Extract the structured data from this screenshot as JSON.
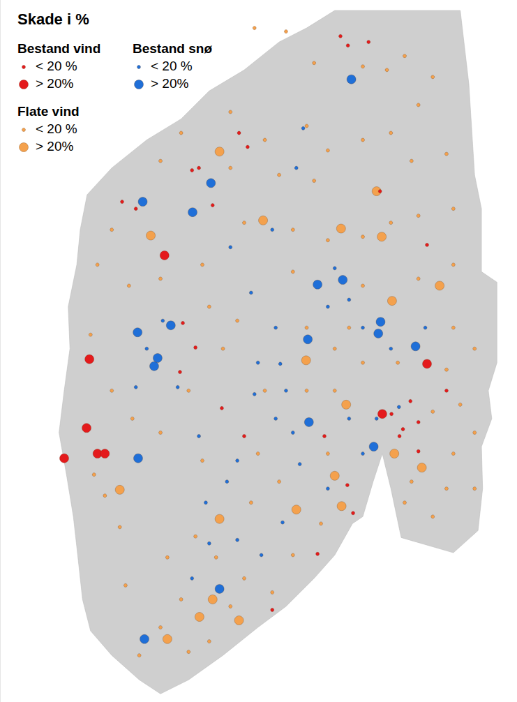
{
  "chart_data": {
    "type": "scatter",
    "title": "Skade i %",
    "xlim": [
      3.66,
      12.68
    ],
    "ylim": [
      57.7,
      63.72
    ],
    "tick_labels": false,
    "grid": false,
    "land": [
      [
        9.5,
        63.63
      ],
      [
        11.69,
        63.63
      ],
      [
        11.84,
        63.0
      ],
      [
        11.94,
        62.22
      ],
      [
        12.06,
        61.93
      ],
      [
        12.06,
        61.39
      ],
      [
        12.33,
        61.3
      ],
      [
        12.33,
        60.61
      ],
      [
        12.18,
        60.37
      ],
      [
        12.24,
        60.13
      ],
      [
        12.06,
        59.89
      ],
      [
        12.08,
        59.53
      ],
      [
        12.0,
        59.17
      ],
      [
        11.57,
        58.98
      ],
      [
        10.66,
        59.11
      ],
      [
        10.48,
        59.53
      ],
      [
        10.33,
        59.83
      ],
      [
        10.17,
        59.59
      ],
      [
        9.99,
        59.29
      ],
      [
        9.81,
        59.23
      ],
      [
        9.5,
        58.96
      ],
      [
        9.14,
        58.76
      ],
      [
        8.65,
        58.52
      ],
      [
        8.16,
        58.34
      ],
      [
        7.55,
        58.1
      ],
      [
        6.95,
        57.89
      ],
      [
        6.46,
        57.77
      ],
      [
        6.09,
        57.89
      ],
      [
        5.61,
        58.1
      ],
      [
        5.24,
        58.31
      ],
      [
        5.1,
        58.58
      ],
      [
        5.02,
        58.94
      ],
      [
        4.94,
        59.29
      ],
      [
        4.82,
        59.65
      ],
      [
        4.69,
        60.01
      ],
      [
        4.78,
        60.37
      ],
      [
        4.88,
        60.73
      ],
      [
        4.85,
        61.09
      ],
      [
        5.0,
        61.45
      ],
      [
        5.06,
        61.75
      ],
      [
        5.18,
        62.05
      ],
      [
        5.61,
        62.28
      ],
      [
        6.22,
        62.52
      ],
      [
        6.82,
        62.7
      ],
      [
        7.31,
        62.94
      ],
      [
        7.92,
        63.12
      ],
      [
        8.53,
        63.36
      ],
      [
        9.01,
        63.48
      ]
    ],
    "series": [
      {
        "name": "Bestand vind",
        "color": "#e41a1c",
        "groups": [
          {
            "label": "< 20 %",
            "points": [
              [
                9.6,
                63.41
              ],
              [
                9.73,
                63.33
              ],
              [
                10.09,
                63.36
              ],
              [
                7.83,
                62.58
              ],
              [
                7.98,
                62.46
              ],
              [
                7.13,
                62.28
              ],
              [
                7.01,
                62.26
              ],
              [
                5.79,
                61.99
              ],
              [
                6.03,
                61.93
              ],
              [
                7.37,
                61.96
              ],
              [
                10.29,
                62.08
              ],
              [
                11.11,
                61.62
              ],
              [
                6.85,
                60.95
              ],
              [
                7.07,
                60.74
              ],
              [
                6.8,
                60.53
              ],
              [
                10.96,
                60.1
              ],
              [
                10.69,
                60.04
              ],
              [
                10.49,
                60.17
              ],
              [
                10.63,
                59.98
              ],
              [
                9.72,
                59.56
              ],
              [
                9.82,
                59.32
              ],
              [
                7.53,
                60.22
              ],
              [
                9.32,
                59.98
              ],
              [
                7.92,
                59.98
              ],
              [
                8.41,
                58.49
              ],
              [
                9.2,
                58.97
              ],
              [
                10.82,
                60.28
              ],
              [
                11.45,
                60.37
              ],
              [
                10.96,
                59.85
              ]
            ]
          },
          {
            "label": "> 20%",
            "points": [
              [
                6.53,
                61.53
              ],
              [
                5.22,
                60.64
              ],
              [
                5.17,
                60.05
              ],
              [
                4.78,
                59.79
              ],
              [
                5.36,
                59.83
              ],
              [
                5.49,
                59.83
              ],
              [
                11.11,
                60.6
              ],
              [
                10.33,
                60.17
              ]
            ]
          }
        ]
      },
      {
        "name": "Bestand snø",
        "color": "#1f6fd8",
        "groups": [
          {
            "label": "< 20 %",
            "points": [
              [
                8.95,
                62.62
              ],
              [
                8.83,
                62.28
              ],
              [
                8.41,
                61.75
              ],
              [
                7.68,
                61.6
              ],
              [
                9.5,
                61.42
              ],
              [
                9.38,
                61.09
              ],
              [
                9.75,
                61.15
              ],
              [
                9.99,
                60.91
              ],
              [
                8.04,
                61.21
              ],
              [
                8.16,
                60.61
              ],
              [
                8.55,
                60.6
              ],
              [
                8.47,
                60.91
              ],
              [
                8.65,
                60.37
              ],
              [
                8.1,
                60.34
              ],
              [
                8.47,
                60.13
              ],
              [
                8.77,
                60.01
              ],
              [
                9.75,
                60.13
              ],
              [
                10.23,
                60.13
              ],
              [
                9.99,
                59.83
              ],
              [
                7.8,
                59.77
              ],
              [
                7.62,
                59.59
              ],
              [
                7.25,
                59.41
              ],
              [
                6.03,
                60.4
              ],
              [
                6.5,
                60.97
              ],
              [
                6.22,
                60.73
              ],
              [
                6.76,
                60.4
              ],
              [
                7.13,
                59.98
              ],
              [
                8.22,
                58.96
              ],
              [
                7.8,
                59.09
              ],
              [
                7.01,
                58.76
              ],
              [
                7.31,
                59.06
              ],
              [
                8.59,
                59.24
              ],
              [
                8.89,
                59.74
              ],
              [
                9.38,
                59.53
              ],
              [
                10.62,
                60.23
              ],
              [
                10.48,
                60.73
              ],
              [
                11.08,
                60.91
              ]
            ]
          },
          {
            "label": "> 20%",
            "points": [
              [
                9.79,
                63.04
              ],
              [
                7.34,
                62.15
              ],
              [
                7.02,
                61.9
              ],
              [
                6.15,
                61.99
              ],
              [
                9.2,
                61.28
              ],
              [
                9.64,
                61.32
              ],
              [
                10.3,
                60.96
              ],
              [
                10.26,
                60.86
              ],
              [
                10.91,
                60.75
              ],
              [
                9.03,
                60.81
              ],
              [
                9.05,
                60.1
              ],
              [
                10.18,
                59.89
              ],
              [
                6.64,
                60.93
              ],
              [
                6.06,
                60.87
              ],
              [
                6.35,
                60.58
              ],
              [
                6.41,
                60.65
              ],
              [
                6.07,
                59.79
              ],
              [
                7.49,
                58.67
              ],
              [
                6.18,
                58.24
              ]
            ]
          }
        ]
      },
      {
        "name": "Flate vind",
        "color": "#f4a14d",
        "groups": [
          {
            "label": "< 20 %",
            "points": [
              [
                8.1,
                63.48
              ],
              [
                8.65,
                63.45
              ],
              [
                9.14,
                63.18
              ],
              [
                9.99,
                63.15
              ],
              [
                10.41,
                63.12
              ],
              [
                10.72,
                63.24
              ],
              [
                11.21,
                63.06
              ],
              [
                10.96,
                62.82
              ],
              [
                10.48,
                62.58
              ],
              [
                9.99,
                62.52
              ],
              [
                9.38,
                62.43
              ],
              [
                9.01,
                62.64
              ],
              [
                8.28,
                62.52
              ],
              [
                7.68,
                62.76
              ],
              [
                6.82,
                62.58
              ],
              [
                6.46,
                62.34
              ],
              [
                7.68,
                62.28
              ],
              [
                8.53,
                62.22
              ],
              [
                9.14,
                62.17
              ],
              [
                10.84,
                62.34
              ],
              [
                11.45,
                62.4
              ],
              [
                11.57,
                61.93
              ],
              [
                10.96,
                61.87
              ],
              [
                10.48,
                61.81
              ],
              [
                9.99,
                61.69
              ],
              [
                9.38,
                61.66
              ],
              [
                8.77,
                61.75
              ],
              [
                7.92,
                61.81
              ],
              [
                5.61,
                61.75
              ],
              [
                5.36,
                61.45
              ],
              [
                5.91,
                61.27
              ],
              [
                6.46,
                61.33
              ],
              [
                7.19,
                61.45
              ],
              [
                8.77,
                61.39
              ],
              [
                11.57,
                61.45
              ],
              [
                10.96,
                61.33
              ],
              [
                9.99,
                61.27
              ],
              [
                10.6,
                60.61
              ],
              [
                9.99,
                60.61
              ],
              [
                9.5,
                60.73
              ],
              [
                11.57,
                60.91
              ],
              [
                11.94,
                60.73
              ],
              [
                11.45,
                60.55
              ],
              [
                11.69,
                60.25
              ],
              [
                11.21,
                60.19
              ],
              [
                11.94,
                60.01
              ],
              [
                11.57,
                59.83
              ],
              [
                11.45,
                59.53
              ],
              [
                11.94,
                59.53
              ],
              [
                11.21,
                59.29
              ],
              [
                10.84,
                59.59
              ],
              [
                10.72,
                59.41
              ],
              [
                9.38,
                59.83
              ],
              [
                9.01,
                60.37
              ],
              [
                9.5,
                60.37
              ],
              [
                8.28,
                60.37
              ],
              [
                7.55,
                60.73
              ],
              [
                6.95,
                60.37
              ],
              [
                5.97,
                60.13
              ],
              [
                5.61,
                60.37
              ],
              [
                5.24,
                60.85
              ],
              [
                6.46,
                60.01
              ],
              [
                7.19,
                59.77
              ],
              [
                8.16,
                59.83
              ],
              [
                8.53,
                59.59
              ],
              [
                8.04,
                59.41
              ],
              [
                7.07,
                59.12
              ],
              [
                6.58,
                58.94
              ],
              [
                7.43,
                58.94
              ],
              [
                7.92,
                58.76
              ],
              [
                8.77,
                58.96
              ],
              [
                9.26,
                59.23
              ],
              [
                8.41,
                58.64
              ],
              [
                7.68,
                58.52
              ],
              [
                6.82,
                58.58
              ],
              [
                6.46,
                58.34
              ],
              [
                6.09,
                58.1
              ],
              [
                6.95,
                58.13
              ],
              [
                7.31,
                58.22
              ],
              [
                5.75,
                59.2
              ],
              [
                5.49,
                59.47
              ],
              [
                5.3,
                59.65
              ],
              [
                5.85,
                58.7
              ],
              [
                9.01,
                60.91
              ],
              [
                9.75,
                60.91
              ],
              [
                7.31,
                61.09
              ],
              [
                7.8,
                60.97
              ]
            ]
          },
          {
            "label": "> 20%",
            "points": [
              [
                7.49,
                62.42
              ],
              [
                8.25,
                61.83
              ],
              [
                9.61,
                61.76
              ],
              [
                10.32,
                61.69
              ],
              [
                6.29,
                61.7
              ],
              [
                10.5,
                61.14
              ],
              [
                9.0,
                60.63
              ],
              [
                9.7,
                60.25
              ],
              [
                9.5,
                59.64
              ],
              [
                11.02,
                59.71
              ],
              [
                10.54,
                59.83
              ],
              [
                9.62,
                59.38
              ],
              [
                8.83,
                59.35
              ],
              [
                7.49,
                59.27
              ],
              [
                5.75,
                59.52
              ],
              [
                7.83,
                58.4
              ],
              [
                7.14,
                58.43
              ],
              [
                6.58,
                58.24
              ],
              [
                7.37,
                58.58
              ],
              [
                10.23,
                62.08
              ],
              [
                11.33,
                61.27
              ]
            ]
          }
        ]
      }
    ]
  }
}
